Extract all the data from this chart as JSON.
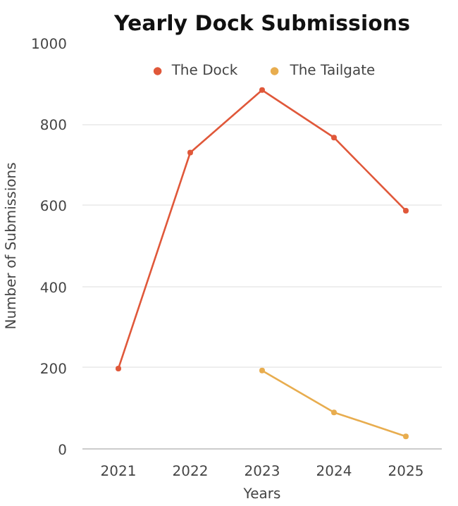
{
  "chart_data": {
    "type": "line",
    "title": "Yearly Dock Submissions",
    "xlabel": "Years",
    "ylabel": "Number of Submissions",
    "categories": [
      "2021",
      "2022",
      "2023",
      "2024",
      "2025"
    ],
    "series": [
      {
        "name": "The Dock",
        "color": "#e0583a",
        "values": [
          198,
          730,
          884,
          767,
          587
        ]
      },
      {
        "name": "The Tailgate",
        "color": "#e8ad4f",
        "values": [
          null,
          null,
          193,
          90,
          31
        ]
      }
    ],
    "ylim": [
      0,
      1000
    ],
    "yticks": [
      0,
      200,
      400,
      600,
      800,
      1000
    ],
    "grid": "y",
    "legend": "top",
    "marker": "circle",
    "line_style": "solid"
  }
}
